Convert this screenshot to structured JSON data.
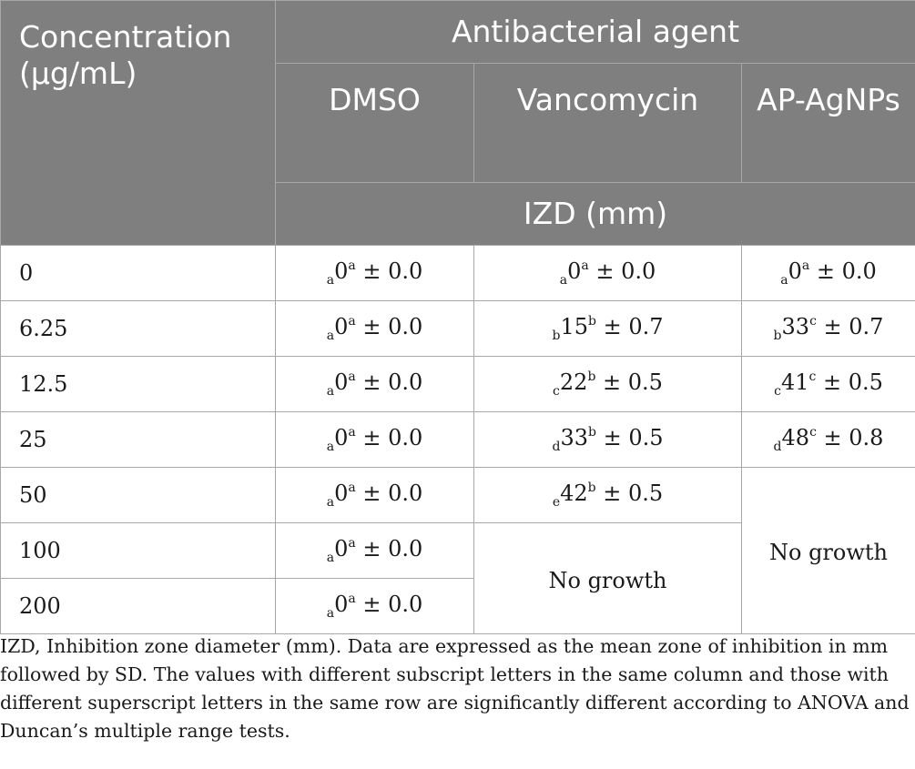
{
  "header": {
    "concentration": "Concentration (µg/mL)",
    "group": "Antibacterial agent",
    "columns": [
      "DMSO",
      "Vancomycin",
      "AP-AgNPs"
    ],
    "unit_row": "IZD (mm)"
  },
  "rows": [
    {
      "conc": "0",
      "dmso": {
        "sub": "a",
        "val": "0",
        "sup": "a",
        "sd": " ± 0.0"
      },
      "vanco": {
        "sub": "a",
        "val": "0",
        "sup": "a",
        "sd": " ± 0.0"
      },
      "ap": {
        "sub": "a",
        "val": "0",
        "sup": "a",
        "sd": " ± 0.0"
      }
    },
    {
      "conc": "6.25",
      "dmso": {
        "sub": "a",
        "val": "0",
        "sup": "a",
        "sd": " ± 0.0"
      },
      "vanco": {
        "sub": "b",
        "val": "15",
        "sup": "b",
        "sd": " ± 0.7"
      },
      "ap": {
        "sub": "b",
        "val": "33",
        "sup": "c",
        "sd": " ± 0.7"
      }
    },
    {
      "conc": "12.5",
      "dmso": {
        "sub": "a",
        "val": "0",
        "sup": "a",
        "sd": " ± 0.0"
      },
      "vanco": {
        "sub": "c",
        "val": "22",
        "sup": "b",
        "sd": " ± 0.5"
      },
      "ap": {
        "sub": "c",
        "val": "41",
        "sup": "c",
        "sd": " ± 0.5"
      }
    },
    {
      "conc": "25",
      "dmso": {
        "sub": "a",
        "val": "0",
        "sup": "a",
        "sd": " ± 0.0"
      },
      "vanco": {
        "sub": "d",
        "val": "33",
        "sup": "b",
        "sd": " ± 0.5"
      },
      "ap": {
        "sub": "d",
        "val": "48",
        "sup": "c",
        "sd": " ± 0.8"
      }
    },
    {
      "conc": "50",
      "dmso": {
        "sub": "a",
        "val": "0",
        "sup": "a",
        "sd": " ± 0.0"
      },
      "vanco": {
        "sub": "e",
        "val": "42",
        "sup": "b",
        "sd": " ± 0.5"
      }
    },
    {
      "conc": "100",
      "dmso": {
        "sub": "a",
        "val": "0",
        "sup": "a",
        "sd": " ± 0.0"
      }
    },
    {
      "conc": "200",
      "dmso": {
        "sub": "a",
        "val": "0",
        "sup": "a",
        "sd": " ± 0.0"
      }
    }
  ],
  "no_growth": {
    "vancomycin": "No growth",
    "ap_agnps": "No growth"
  },
  "footnote": "IZD, Inhibition zone diameter (mm). Data are expressed as the mean zone of inhibition in mm followed by SD. The values with different subscript letters in the same column and those with different superscript letters in the same row are significantly different according to ANOVA and Duncan’s multiple range tests.",
  "colors": {
    "header_bg": "#7f7f7f",
    "header_text": "#ffffff",
    "border": "#a8a8a8"
  }
}
